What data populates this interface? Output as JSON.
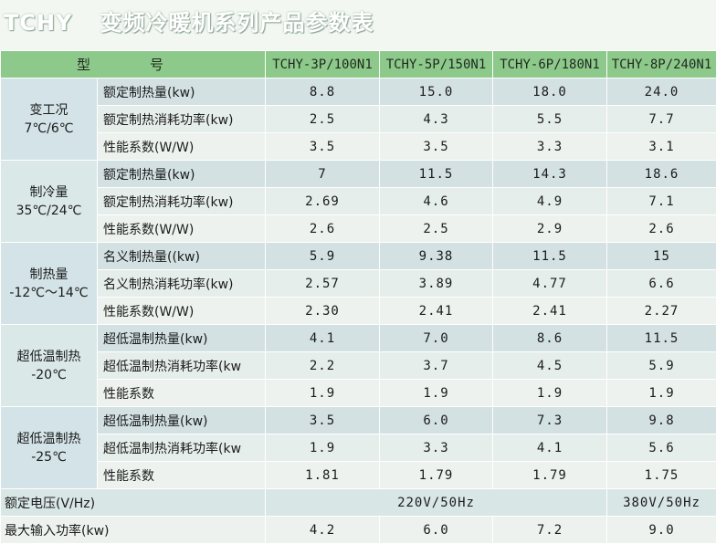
{
  "title": {
    "model": "TCHY",
    "text": "变频冷暖机系列产品参数表"
  },
  "header": {
    "type_label": "型 号",
    "models": [
      "TCHY-3P/100N1",
      "TCHY-5P/150N1",
      "TCHY-6P/180N1",
      "TCHY-8P/240N1"
    ]
  },
  "groups": [
    {
      "name_line1": "变工况",
      "name_line2": "7℃/6℃",
      "rows": [
        {
          "label": "额定制热量(kw)",
          "values": [
            "8.8",
            "15.0",
            "18.0",
            "24.0"
          ]
        },
        {
          "label": "额定制热消耗功率(kw)",
          "values": [
            "2.5",
            "4.3",
            "5.5",
            "7.7"
          ]
        },
        {
          "label": "性能系数(W/W)",
          "values": [
            "3.5",
            "3.5",
            "3.3",
            "3.1"
          ]
        }
      ]
    },
    {
      "name_line1": "制冷量",
      "name_line2": "35℃/24℃",
      "rows": [
        {
          "label": "额定制热量(kw)",
          "values": [
            "7",
            "11.5",
            "14.3",
            "18.6"
          ]
        },
        {
          "label": "额定制热消耗功率(kw)",
          "values": [
            "2.69",
            "4.6",
            "4.9",
            "7.1"
          ]
        },
        {
          "label": "性能系数(W/W)",
          "values": [
            "2.6",
            "2.5",
            "2.9",
            "2.6"
          ]
        }
      ]
    },
    {
      "name_line1": "制热量",
      "name_line2": "-12℃～14℃",
      "rows": [
        {
          "label": "名义制热量((kw)",
          "values": [
            "5.9",
            "9.38",
            "11.5",
            "15"
          ]
        },
        {
          "label": "名义制热消耗功率(kw)",
          "values": [
            "2.57",
            "3.89",
            "4.77",
            "6.6"
          ]
        },
        {
          "label": "性能系数(W/W)",
          "values": [
            "2.30",
            "2.41",
            "2.41",
            "2.27"
          ]
        }
      ]
    },
    {
      "name_line1": "超低温制热",
      "name_line2": "-20℃",
      "rows": [
        {
          "label": "超低温制热量(kw)",
          "values": [
            "4.1",
            "7.0",
            "8.6",
            "11.5"
          ]
        },
        {
          "label": "超低温制热消耗功率(kw",
          "values": [
            "2.2",
            "3.7",
            "4.5",
            "5.9"
          ]
        },
        {
          "label": "性能系数",
          "values": [
            "1.9",
            "1.9",
            "1.9",
            "1.9"
          ]
        }
      ]
    },
    {
      "name_line1": "超低温制热",
      "name_line2": "-25℃",
      "rows": [
        {
          "label": "超低温制热量(kw)",
          "values": [
            "3.5",
            "6.0",
            "7.3",
            "9.8"
          ]
        },
        {
          "label": "超低温制热消耗功率(kw",
          "values": [
            "1.9",
            "3.3",
            "4.1",
            "5.6"
          ]
        },
        {
          "label": "性能系数",
          "values": [
            "1.81",
            "1.79",
            "1.79",
            "1.75"
          ]
        }
      ]
    }
  ],
  "voltage": {
    "label": "额定电压(V/Hz)",
    "value_a": "220V/50Hz",
    "value_b": "380V/50Hz"
  },
  "max_power": {
    "label": "最大输入功率(kw)",
    "values": [
      "4.2",
      "6.0",
      "7.2",
      "9.0"
    ]
  },
  "colors": {
    "header_green": "#8dc98a",
    "row_blue": "#d3e1e3",
    "row_light": "#edf2ee"
  }
}
